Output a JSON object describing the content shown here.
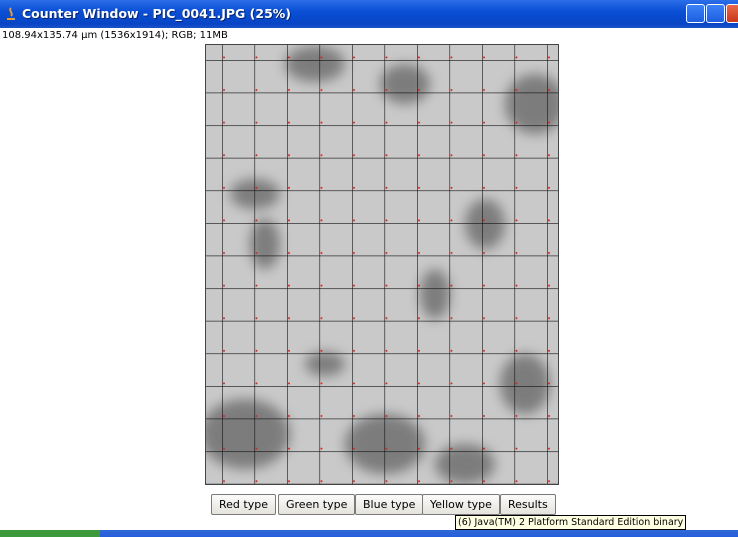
{
  "window": {
    "title": "Counter Window - PIC_0041.JPG (25%)",
    "info": "108.94x135.74 µm (1536x1914); RGB; 11MB"
  },
  "buttons": [
    "Red type",
    "Green type",
    "Blue type",
    "Yellow type",
    "Results"
  ],
  "tooltip": "(6) Java(TM) 2 Platform Standard Edition binary"
}
